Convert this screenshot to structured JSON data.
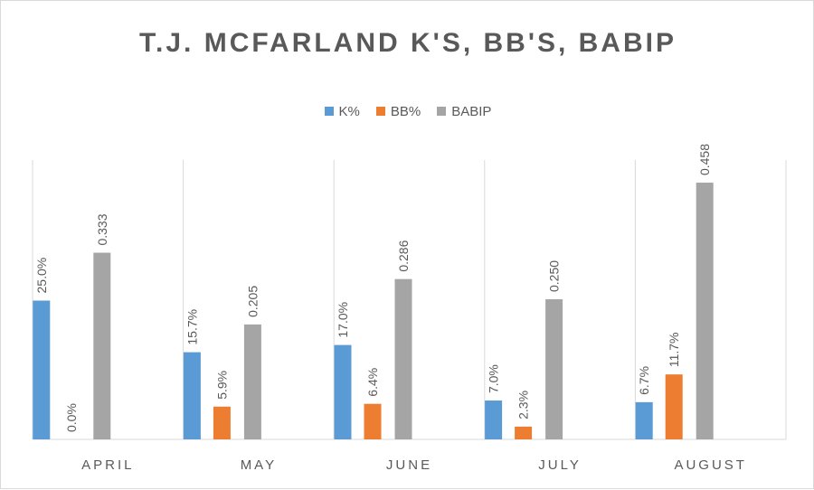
{
  "chart_data": {
    "type": "bar",
    "title": "T.J. MCFARLAND  K'S, BB'S, BABIP",
    "categories": [
      "APRIL",
      "MAY",
      "JUNE",
      "JULY",
      "AUGUST"
    ],
    "series": [
      {
        "name": "K%",
        "color": "#5b9bd5",
        "values": [
          25.0,
          15.7,
          17.0,
          7.0,
          6.7
        ],
        "labels": [
          "25.0%",
          "15.7%",
          "17.0%",
          "7.0%",
          "6.7%"
        ]
      },
      {
        "name": "BB%",
        "color": "#ed7d31",
        "values": [
          0.0,
          5.9,
          6.4,
          2.3,
          11.7
        ],
        "labels": [
          "0.0%",
          "5.9%",
          "6.4%",
          "2.3%",
          "11.7%"
        ]
      },
      {
        "name": "BABIP",
        "color": "#a5a5a5",
        "values": [
          0.333,
          0.205,
          0.286,
          0.25,
          0.458
        ],
        "labels": [
          "0.333",
          "0.205",
          "0.286",
          "0.250",
          "0.458"
        ]
      }
    ],
    "legend_position": "top",
    "gridlines": "vertical category separators"
  }
}
